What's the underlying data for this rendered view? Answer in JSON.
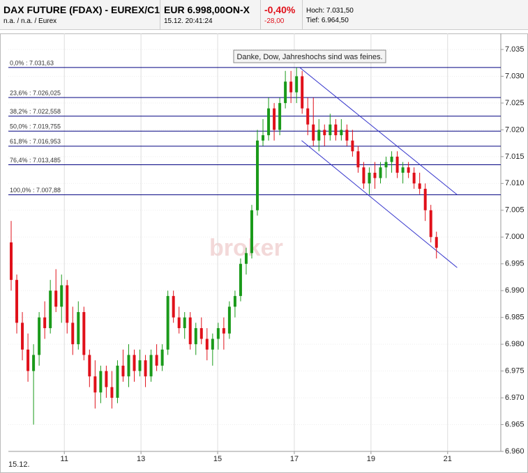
{
  "header": {
    "name": "DAX FUTURE (FDAX) - EUREX/C1",
    "name_sub": "n.a. / n.a. / Eurex",
    "price": "EUR 6.998,00ON-X",
    "time": "15.12. 20:41:24",
    "change_pct": "-0,40%",
    "change_abs": "-28,00",
    "high": "Hoch: 7.031,50",
    "low": "Tief: 6.964,50"
  },
  "chart_data": {
    "type": "candlestick",
    "annotation": "Danke, Dow, Jahreshochs sind was feines.",
    "watermark": "broker",
    "start_label": "15.12.",
    "up_color": "#1a9a1a",
    "down_color": "#e0101a",
    "xlim": [
      0,
      88
    ],
    "ylim": [
      6960,
      7035
    ],
    "xticks": [
      {
        "value": 10,
        "label": "11"
      },
      {
        "value": 23.7,
        "label": "13"
      },
      {
        "value": 37.4,
        "label": "15"
      },
      {
        "value": 51.1,
        "label": "17"
      },
      {
        "value": 64.8,
        "label": "19"
      },
      {
        "value": 78.5,
        "label": "21"
      }
    ],
    "yticks": [
      {
        "value": 6960,
        "label": "6.960"
      },
      {
        "value": 6965,
        "label": "6.965"
      },
      {
        "value": 6970,
        "label": "6.970"
      },
      {
        "value": 6975,
        "label": "6.975"
      },
      {
        "value": 6980,
        "label": "6.980"
      },
      {
        "value": 6985,
        "label": "6.985"
      },
      {
        "value": 6990,
        "label": "6.990"
      },
      {
        "value": 6995,
        "label": "6.995"
      },
      {
        "value": 7000,
        "label": "7.000"
      },
      {
        "value": 7005,
        "label": "7.005"
      },
      {
        "value": 7010,
        "label": "7.010"
      },
      {
        "value": 7015,
        "label": "7.015"
      },
      {
        "value": 7020,
        "label": "7.020"
      },
      {
        "value": 7025,
        "label": "7.025"
      },
      {
        "value": 7030,
        "label": "7.030"
      },
      {
        "value": 7035,
        "label": "7.035"
      }
    ],
    "grid": true,
    "fib_levels": [
      {
        "value": 7031.63,
        "label": "0,0% : 7.031,63"
      },
      {
        "value": 7026.025,
        "label": "23,6% : 7.026,025"
      },
      {
        "value": 7022.558,
        "label": "38,2% : 7.022,558"
      },
      {
        "value": 7019.755,
        "label": "50,0% : 7.019,755"
      },
      {
        "value": 7016.953,
        "label": "61,8% : 7.016,953"
      },
      {
        "value": 7013.485,
        "label": "76,4% : 7.013,485"
      },
      {
        "value": 7007.88,
        "label": "100,0% : 7.007,88"
      }
    ],
    "trend_lines": [
      {
        "x": [
          52.1,
          80.2
        ],
        "y": [
          7031.6,
          7007.9
        ]
      },
      {
        "x": [
          52.4,
          80.2
        ],
        "y": [
          7018,
          6994.3
        ]
      }
    ],
    "x": [
      0.5,
      1.5,
      2.5,
      3.5,
      4.5,
      5.5,
      6.5,
      7.5,
      8.5,
      9.5,
      10.5,
      11.5,
      12.5,
      13.5,
      14.5,
      15.5,
      16.5,
      17.5,
      18.5,
      19.5,
      20.5,
      21.5,
      22.5,
      23.5,
      24.5,
      25.5,
      26.5,
      27.5,
      28.5,
      29.5,
      30.5,
      31.5,
      32.5,
      33.5,
      34.5,
      35.5,
      36.5,
      37.5,
      38.5,
      39.5,
      40.5,
      41.5,
      42.5,
      43.5,
      44.5,
      45.5,
      46.5,
      47.5,
      48.5,
      49.5,
      50.5,
      51.5,
      52.5,
      53.5,
      54.5,
      55.5,
      56.5,
      57.5,
      58.5,
      59.5,
      60.5,
      61.5,
      62.5,
      63.5,
      64.5,
      65.5,
      66.5,
      67.5,
      68.5,
      69.5,
      70.5,
      71.5,
      72.5,
      73.5,
      74.5,
      75.5,
      76.5
    ],
    "open": [
      6999,
      6992,
      6984,
      6979,
      6975,
      6978,
      6985,
      6983,
      6990,
      6987,
      6991,
      6984,
      6980,
      6986,
      6978,
      6974,
      6971,
      6975,
      6972,
      6970,
      6976,
      6974,
      6978,
      6975,
      6977,
      6974,
      6978,
      6976,
      6979,
      6989,
      6985,
      6983,
      6985,
      6980,
      6983,
      6981,
      6979,
      6981,
      6983,
      6982,
      6987,
      6989,
      6995,
      6997,
      7005,
      7018,
      7019,
      7024,
      7020,
      7025,
      7029,
      7027,
      7030,
      7024,
      7021,
      7018,
      7020,
      7019,
      7021,
      7019,
      7020,
      7018,
      7016,
      7013,
      7010,
      7012,
      7011,
      7013,
      7014,
      7015,
      7012,
      7013,
      7012,
      7010,
      7009,
      7005,
      7000
    ],
    "high": [
      7003,
      6993,
      6986,
      6982,
      6980,
      6986,
      6988,
      6992,
      6994,
      6993,
      6992,
      6987,
      6988,
      6987,
      6979,
      6977,
      6976,
      6976,
      6975,
      6977,
      6979,
      6980,
      6979,
      6979,
      6978,
      6979,
      6980,
      6980,
      6990,
      6990,
      6987,
      6986,
      6986,
      6984,
      6985,
      6983,
      6982,
      6984,
      6985,
      6988,
      6990,
      6996,
      6998,
      7006,
      7020,
      7022,
      7026,
      7025,
      7026,
      7031,
      7031,
      7031.63,
      7031,
      7026,
      7026,
      7022,
      7021,
      7023,
      7022,
      7022,
      7021,
      7020,
      7017,
      7014,
      7013,
      7014,
      7014,
      7015,
      7016,
      7016,
      7014,
      7014,
      7013,
      7012,
      7010,
      7006,
      7001
    ],
    "low": [
      6990,
      6982,
      6977,
      6973,
      6965,
      6976,
      6981,
      6982,
      6986,
      6984,
      6982,
      6978,
      6979,
      6977,
      6972,
      6968,
      6969,
      6970,
      6968,
      6969,
      6973,
      6972,
      6973,
      6974,
      6972,
      6973,
      6975,
      6975,
      6978,
      6984,
      6982,
      6981,
      6979,
      6978,
      6980,
      6977,
      6976,
      6979,
      6979,
      6981,
      6985,
      6988,
      6993,
      6996,
      7004,
      7017,
      7018,
      7018,
      7019,
      7024,
      7025,
      7025,
      7023,
      7019,
      7017,
      7016,
      7017,
      7018,
      7018,
      7018,
      7017,
      7015,
      7012,
      7009,
      7008,
      7009,
      7010,
      7011,
      7012,
      7011,
      7010,
      7011,
      7009,
      7008,
      7003,
      6999,
      6996
    ],
    "close": [
      6992,
      6984,
      6979,
      6975,
      6978,
      6985,
      6983,
      6990,
      6987,
      6991,
      6984,
      6980,
      6986,
      6978,
      6974,
      6971,
      6975,
      6972,
      6970,
      6976,
      6974,
      6978,
      6975,
      6977,
      6974,
      6978,
      6976,
      6979,
      6989,
      6985,
      6983,
      6985,
      6980,
      6983,
      6981,
      6979,
      6981,
      6983,
      6982,
      6987,
      6989,
      6995,
      6997,
      7005,
      7018,
      7019,
      7024,
      7020,
      7025,
      7029,
      7027,
      7030,
      7024,
      7021,
      7018,
      7020,
      7019,
      7021,
      7019,
      7020,
      7018,
      7016,
      7013,
      7010,
      7012,
      7011,
      7013,
      7014,
      7015,
      7012,
      7013,
      7012,
      7010,
      7009,
      7005,
      7000,
      6998
    ]
  }
}
